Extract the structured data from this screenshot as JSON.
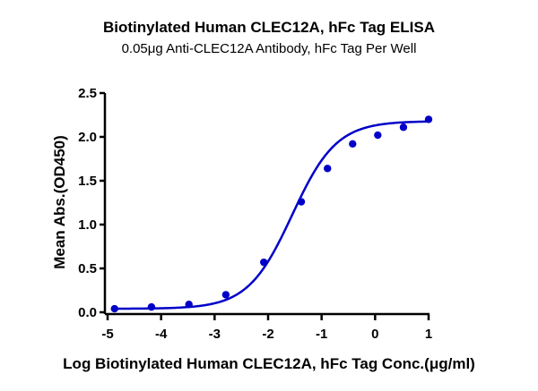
{
  "chart_data": {
    "type": "scatter",
    "title": "Biotinylated Human CLEC12A, hFc Tag ELISA",
    "subtitle": "0.05μg Anti-CLEC12A Antibody, hFc Tag Per Well",
    "xlabel": "Log Biotinylated Human CLEC12A, hFc Tag Conc.(μg/ml)",
    "ylabel": "Mean Abs.(OD450)",
    "xlim": [
      -5,
      1
    ],
    "ylim": [
      0,
      2.5
    ],
    "x_ticks": [
      "-5",
      "-4",
      "-3",
      "-2",
      "-1",
      "0",
      "1"
    ],
    "y_ticks": [
      "0.0",
      "0.5",
      "1.0",
      "1.5",
      "2.0",
      "2.5"
    ],
    "grid": false,
    "legend": null,
    "fit": "sigmoidal 4PL curve",
    "series": [
      {
        "name": "Mean Abs.(OD450)",
        "color": "#0000c8",
        "x": [
          -4.87,
          -4.18,
          -3.48,
          -2.79,
          -2.08,
          -1.38,
          -0.89,
          -0.42,
          0.05,
          0.53,
          1.0
        ],
        "y": [
          0.04,
          0.06,
          0.09,
          0.2,
          0.57,
          1.26,
          1.64,
          1.92,
          2.02,
          2.11,
          2.2
        ]
      }
    ]
  }
}
